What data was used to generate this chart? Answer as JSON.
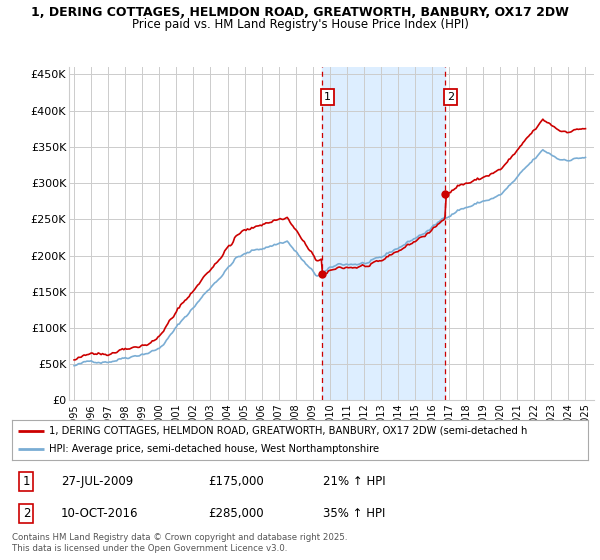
{
  "title1": "1, DERING COTTAGES, HELMDON ROAD, GREATWORTH, BANBURY, OX17 2DW",
  "title2": "Price paid vs. HM Land Registry's House Price Index (HPI)",
  "yticks": [
    0,
    50000,
    100000,
    150000,
    200000,
    250000,
    300000,
    350000,
    400000,
    450000
  ],
  "ytick_labels": [
    "£0",
    "£50K",
    "£100K",
    "£150K",
    "£200K",
    "£250K",
    "£300K",
    "£350K",
    "£400K",
    "£450K"
  ],
  "ylim": [
    0,
    460000
  ],
  "sale1_date": 2009.57,
  "sale1_price": 175000,
  "sale1_label": "1",
  "sale2_date": 2016.78,
  "sale2_price": 285000,
  "sale2_label": "2",
  "legend_line1": "1, DERING COTTAGES, HELMDON ROAD, GREATWORTH, BANBURY, OX17 2DW (semi-detached h",
  "legend_line2": "HPI: Average price, semi-detached house, West Northamptonshire",
  "table_row1": [
    "1",
    "27-JUL-2009",
    "£175,000",
    "21% ↑ HPI"
  ],
  "table_row2": [
    "2",
    "10-OCT-2016",
    "£285,000",
    "35% ↑ HPI"
  ],
  "footer": "Contains HM Land Registry data © Crown copyright and database right 2025.\nThis data is licensed under the Open Government Licence v3.0.",
  "line_color_red": "#cc0000",
  "line_color_blue": "#7aadd4",
  "shaded_color": "#ddeeff",
  "vline_color": "#cc0000",
  "background_color": "#ffffff",
  "grid_color": "#cccccc",
  "xlim_left": 1994.7,
  "xlim_right": 2025.5
}
